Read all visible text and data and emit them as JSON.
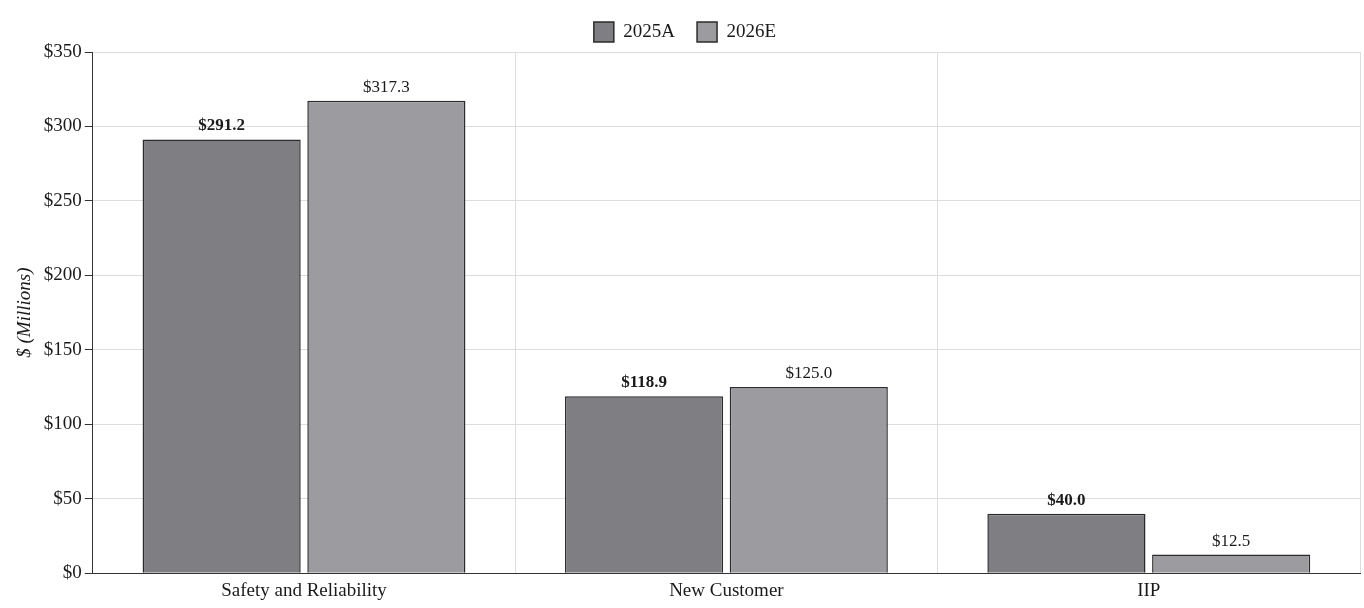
{
  "chart_data": {
    "type": "bar",
    "categories": [
      "Safety and Reliability",
      "New Customer",
      "IIP"
    ],
    "series": [
      {
        "name": "2025A",
        "color": "#7f7f83",
        "values": [
          291.2,
          118.9,
          40.0
        ]
      },
      {
        "name": "2026E",
        "color": "#9c9ca0",
        "values": [
          317.3,
          125.0,
          12.5
        ]
      }
    ],
    "ylabel": "$ (Millions)",
    "ylim": [
      0,
      350
    ],
    "yticks": [
      {
        "value": 0,
        "label": "$0"
      },
      {
        "value": 50,
        "label": "$50"
      },
      {
        "value": 100,
        "label": "$100"
      },
      {
        "value": 150,
        "label": "$150"
      },
      {
        "value": 200,
        "label": "$200"
      },
      {
        "value": 250,
        "label": "$250"
      },
      {
        "value": 300,
        "label": "$300"
      },
      {
        "value": 350,
        "label": "$350"
      }
    ],
    "value_labels": [
      [
        "$291.2",
        "$118.9",
        "$40.0"
      ],
      [
        "$317.3",
        "$125.0",
        "$12.5"
      ]
    ],
    "grid": true,
    "legend": "top"
  }
}
